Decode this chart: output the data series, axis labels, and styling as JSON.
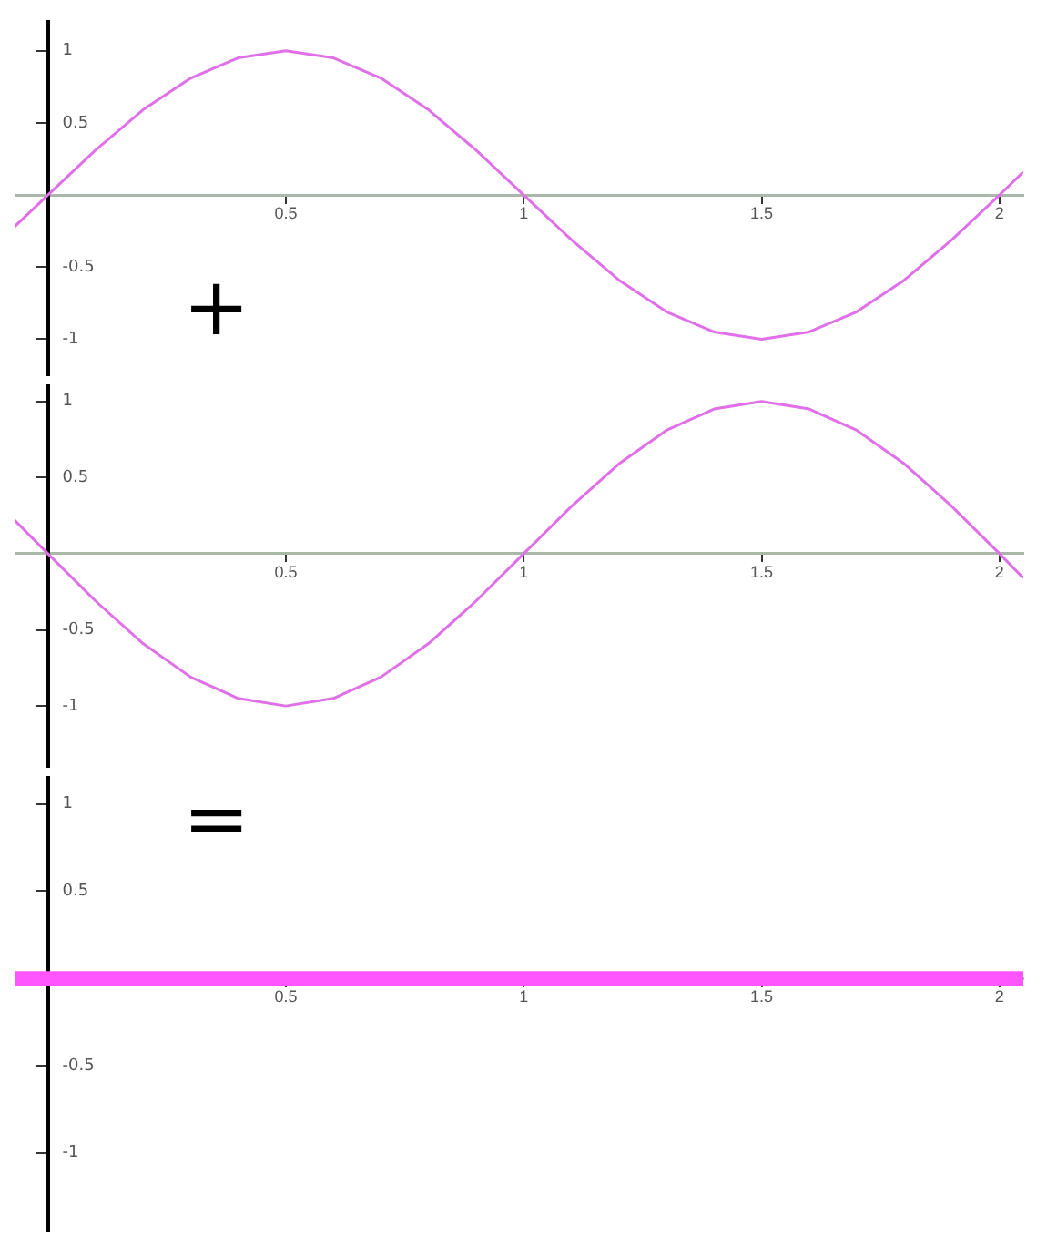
{
  "chart_data": [
    {
      "type": "line",
      "x": [
        -0.07,
        0,
        0.1,
        0.2,
        0.3,
        0.4,
        0.5,
        0.6,
        0.7,
        0.8,
        0.9,
        1,
        1.1,
        1.2,
        1.3,
        1.4,
        1.5,
        1.6,
        1.7,
        1.8,
        1.9,
        2,
        2.05
      ],
      "series": [
        {
          "color": "#e070e8",
          "values": [
            -0.22,
            0,
            0.31,
            0.59,
            0.81,
            0.95,
            1,
            0.95,
            0.81,
            0.59,
            0.31,
            0,
            -0.31,
            -0.59,
            -0.81,
            -0.95,
            -1,
            -0.95,
            -0.81,
            -0.59,
            -0.31,
            0,
            0.16
          ]
        }
      ],
      "xlim": [
        -0.07,
        2.05
      ],
      "xticks": [
        0.5,
        1,
        1.5,
        2
      ],
      "ylim": [
        -1.25,
        1.2
      ],
      "yticks": [
        -1,
        -0.5,
        0.5,
        1
      ],
      "grid": false,
      "legend": false,
      "annotations": [
        "+"
      ]
    },
    {
      "type": "line",
      "x": [
        -0.07,
        0,
        0.1,
        0.2,
        0.3,
        0.4,
        0.5,
        0.6,
        0.7,
        0.8,
        0.9,
        1,
        1.1,
        1.2,
        1.3,
        1.4,
        1.5,
        1.6,
        1.7,
        1.8,
        1.9,
        2,
        2.05
      ],
      "series": [
        {
          "color": "#e070e8",
          "values": [
            0.22,
            0,
            -0.31,
            -0.59,
            -0.81,
            -0.95,
            -1,
            -0.95,
            -0.81,
            -0.59,
            -0.31,
            0,
            0.31,
            0.59,
            0.81,
            0.95,
            1,
            0.95,
            0.81,
            0.59,
            0.31,
            0,
            -0.16
          ]
        }
      ],
      "xlim": [
        -0.07,
        2.05
      ],
      "xticks": [
        0.5,
        1,
        1.5,
        2
      ],
      "ylim": [
        -1.4,
        1.1
      ],
      "yticks": [
        -1,
        -0.5,
        0.5,
        1
      ],
      "grid": false,
      "legend": false
    },
    {
      "type": "line",
      "x": [
        -0.07,
        2.05
      ],
      "series": [
        {
          "color": "#ff55ff",
          "values": [
            0,
            0
          ]
        }
      ],
      "xlim": [
        -0.07,
        2.05
      ],
      "xticks": [
        0.5,
        1,
        1.5,
        2
      ],
      "ylim": [
        -1.45,
        1.15
      ],
      "yticks": [
        -1,
        -0.5,
        0.5,
        1
      ],
      "grid": false,
      "legend": false,
      "annotations": [
        "="
      ]
    }
  ]
}
